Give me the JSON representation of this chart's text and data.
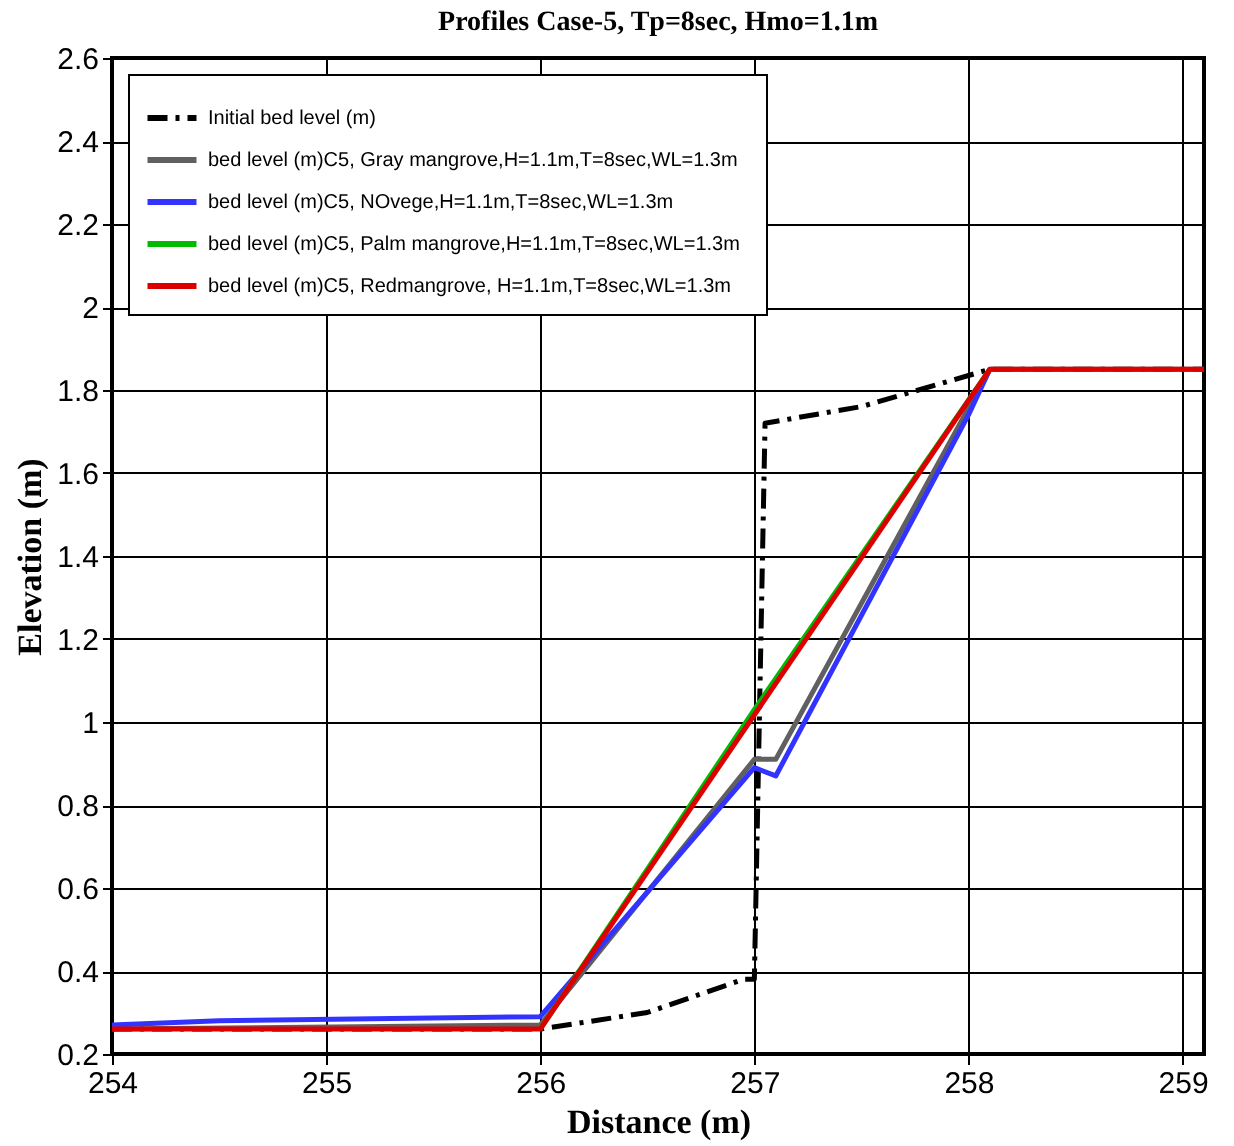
{
  "chart_data": {
    "type": "line",
    "title": "Profiles Case-5, Tp=8sec, Hmo=1.1m",
    "xlabel": "Distance (m)",
    "ylabel": "Elevation (m)",
    "xlim": [
      254,
      259.1
    ],
    "xticks": [
      254,
      255,
      256,
      257,
      258,
      259
    ],
    "ylim": [
      0.2,
      2.6
    ],
    "yticks": [
      0.2,
      0.4,
      0.6,
      0.8,
      1,
      1.2,
      1.4,
      1.6,
      1.8,
      2,
      2.2,
      2.4,
      2.6
    ],
    "grid": true,
    "legend": "top left",
    "series": [
      {
        "name": "Initial bed level (m)",
        "color": "#000000",
        "line_style": "dashed",
        "x": [
          254,
          256,
          256.5,
          256.95,
          257.0,
          257.05,
          257.5,
          258.1,
          259.1
        ],
        "values": [
          0.26,
          0.26,
          0.3,
          0.38,
          0.38,
          1.72,
          1.76,
          1.85,
          1.85
        ]
      },
      {
        "name": "bed level (m)C5,  Gray  mangrove,H=1.1m,T=8sec,WL=1.3m",
        "color": "#606060",
        "line_style": "solid",
        "x": [
          254,
          256,
          257.0,
          257.1,
          258.1,
          259.1
        ],
        "values": [
          0.26,
          0.27,
          0.91,
          0.91,
          1.85,
          1.85
        ]
      },
      {
        "name": "bed level (m)C5,  NOvege,H=1.1m,T=8sec,WL=1.3m",
        "color": "#3333ff",
        "line_style": "solid",
        "x": [
          254,
          254.5,
          256,
          257.0,
          257.1,
          258.0,
          258.1
        ],
        "values": [
          0.27,
          0.28,
          0.29,
          0.89,
          0.87,
          1.74,
          1.85
        ]
      },
      {
        "name": "bed level (m)C5,  Palm mangrove,H=1.1m,T=8sec,WL=1.3m",
        "color": "#00bb00",
        "line_style": "solid",
        "x": [
          256,
          257,
          258.1
        ],
        "values": [
          0.26,
          1.03,
          1.85
        ]
      },
      {
        "name": "bed level (m)C5,  Redmangrove, H=1.1m,T=8sec,WL=1.3m",
        "color": "#dd0000",
        "line_style": "solid",
        "x": [
          254,
          256,
          258.1,
          259.1
        ],
        "values": [
          0.26,
          0.26,
          1.85,
          1.85
        ]
      }
    ]
  }
}
